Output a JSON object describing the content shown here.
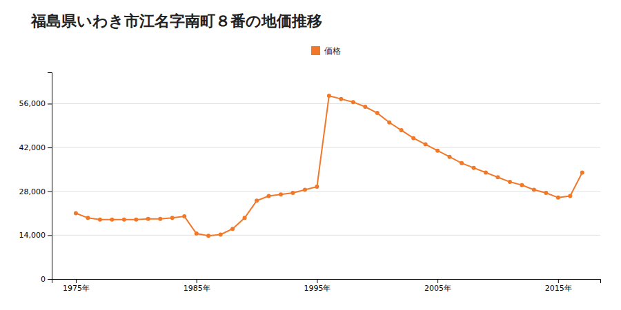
{
  "chart_data": {
    "type": "line",
    "title": "福島県いわき市江名字南町８番の地価推移",
    "x": [
      1975,
      1976,
      1977,
      1978,
      1979,
      1980,
      1981,
      1982,
      1983,
      1984,
      1985,
      1986,
      1987,
      1988,
      1989,
      1990,
      1991,
      1992,
      1993,
      1994,
      1995,
      1996,
      1997,
      1998,
      1999,
      2000,
      2001,
      2002,
      2003,
      2004,
      2005,
      2006,
      2007,
      2008,
      2009,
      2010,
      2011,
      2012,
      2013,
      2014,
      2015,
      2016,
      2017
    ],
    "series": [
      {
        "name": "価格",
        "color": "#f07828",
        "marker": "circle",
        "values": [
          21000,
          19500,
          19000,
          19000,
          19000,
          19000,
          19200,
          19200,
          19500,
          20000,
          14500,
          13800,
          14200,
          16000,
          19500,
          25000,
          26500,
          27000,
          27500,
          28500,
          29500,
          58500,
          57500,
          56500,
          55000,
          53000,
          50000,
          47500,
          45000,
          43000,
          41000,
          39000,
          37000,
          35500,
          34000,
          32500,
          31000,
          30000,
          28500,
          27500,
          26000,
          26500,
          34000
        ]
      }
    ],
    "xlim": [
      1973,
      2018.5
    ],
    "xticks": [
      {
        "value": 1975,
        "label": "1975年"
      },
      {
        "value": 1985,
        "label": "1985年"
      },
      {
        "value": 1995,
        "label": "1995年"
      },
      {
        "value": 2005,
        "label": "2005年"
      },
      {
        "value": 2015,
        "label": "2015年"
      }
    ],
    "ylim": [
      0,
      66000
    ],
    "yticks": [
      0,
      {
        "value": 14000,
        "label": "14,000"
      },
      {
        "value": 28000,
        "label": "28,000"
      },
      {
        "value": 42000,
        "label": "42,000"
      },
      {
        "value": 56000,
        "label": "56,000"
      }
    ],
    "grid": true,
    "legend": "top"
  }
}
